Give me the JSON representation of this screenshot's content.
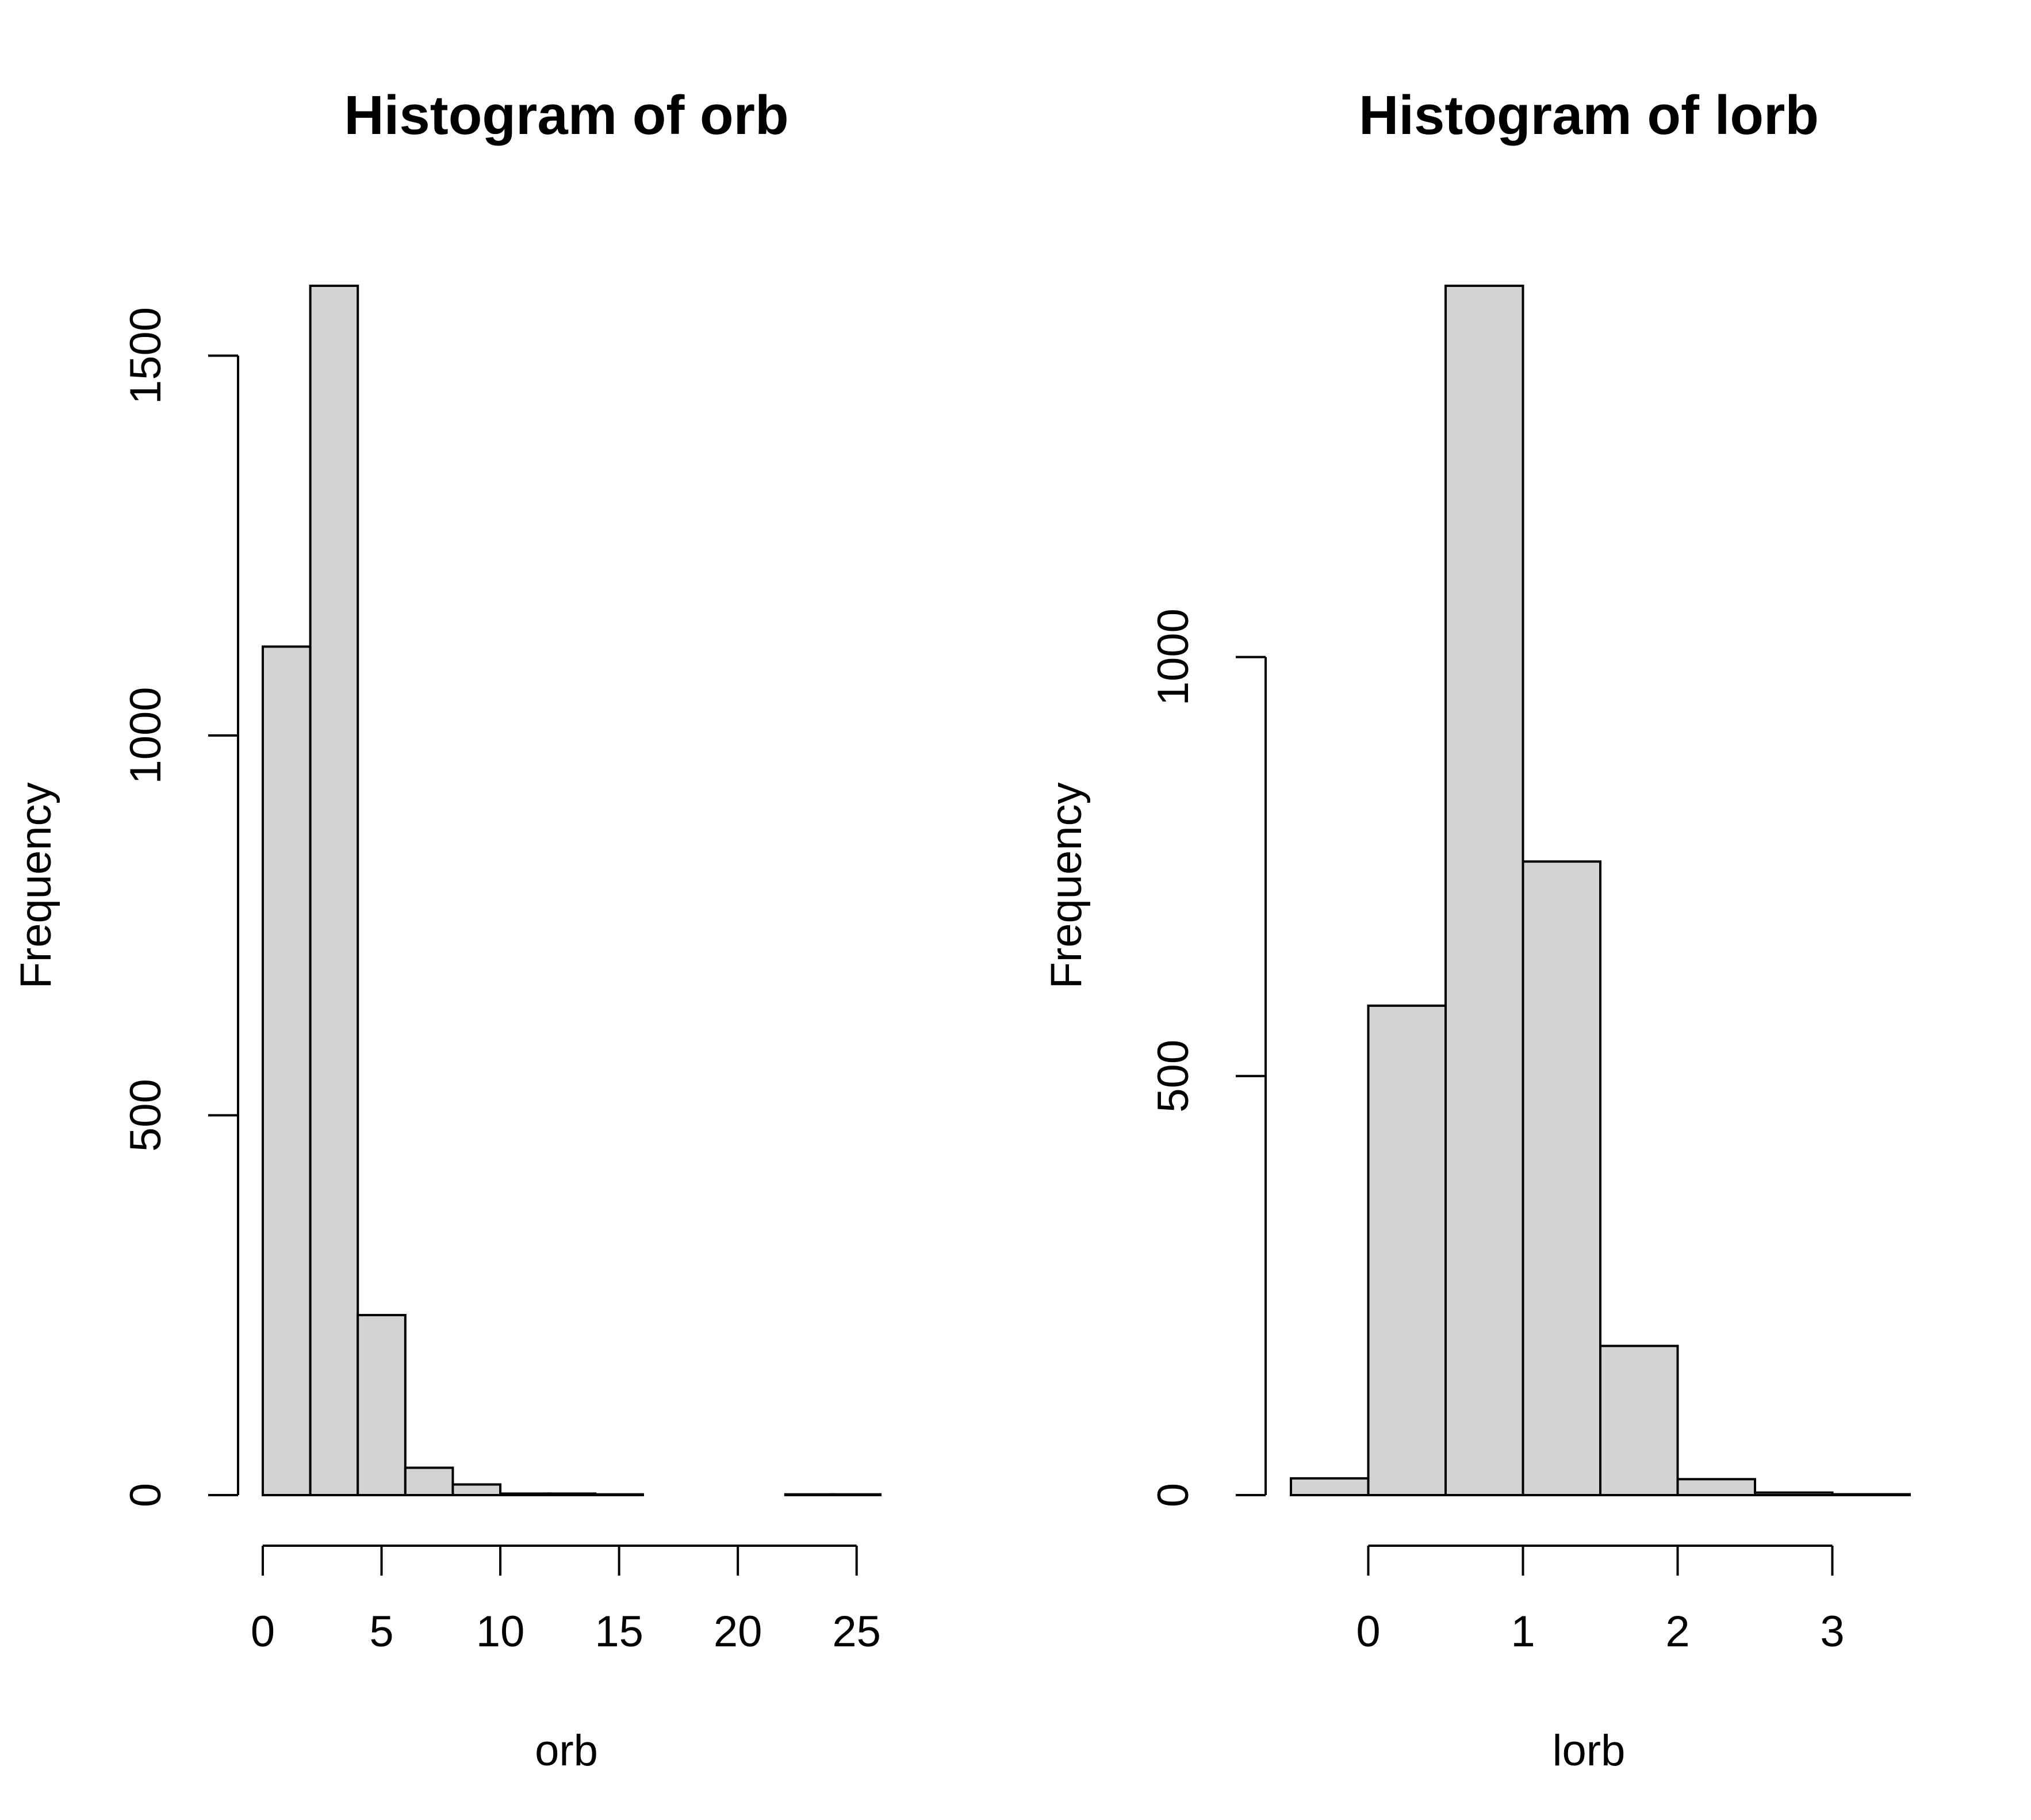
{
  "figure": {
    "bar_fill": "#d3d3d3",
    "stroke": "#000000",
    "background": "#ffffff"
  },
  "chart_data": [
    {
      "type": "bar",
      "title": "Histogram of orb",
      "xlabel": "orb",
      "ylabel": "Frequency",
      "bin_edges": [
        0,
        2,
        4,
        6,
        8,
        10,
        12,
        14,
        16,
        18,
        20,
        22,
        24,
        26
      ],
      "values": [
        1117,
        1592,
        237,
        36,
        14,
        2,
        2,
        1,
        0,
        0,
        0,
        1,
        1
      ],
      "xticks": [
        0,
        5,
        10,
        15,
        20,
        25
      ],
      "yticks": [
        0,
        500,
        1000,
        1500
      ],
      "xticklabels": [
        "0",
        "5",
        "10",
        "15",
        "20",
        "25"
      ],
      "yticklabels": [
        "0",
        "500",
        "1000",
        "1500"
      ],
      "xlim": [
        0,
        26
      ],
      "ylim": [
        0,
        1592
      ],
      "grid": false
    },
    {
      "type": "bar",
      "title": "Histogram of lorb",
      "xlabel": "lorb",
      "ylabel": "Frequency",
      "bin_edges": [
        -0.5,
        0,
        0.5,
        1,
        1.5,
        2,
        2.5,
        3,
        3.5
      ],
      "values": [
        20,
        584,
        1443,
        756,
        178,
        19,
        3,
        1
      ],
      "xticks": [
        0,
        1,
        2,
        3
      ],
      "yticks": [
        0,
        500,
        1000
      ],
      "xticklabels": [
        "0",
        "1",
        "2",
        "3"
      ],
      "yticklabels": [
        "0",
        "500",
        "1000"
      ],
      "xlim": [
        -0.5,
        3.5
      ],
      "ylim": [
        0,
        1443
      ],
      "grid": false
    }
  ]
}
